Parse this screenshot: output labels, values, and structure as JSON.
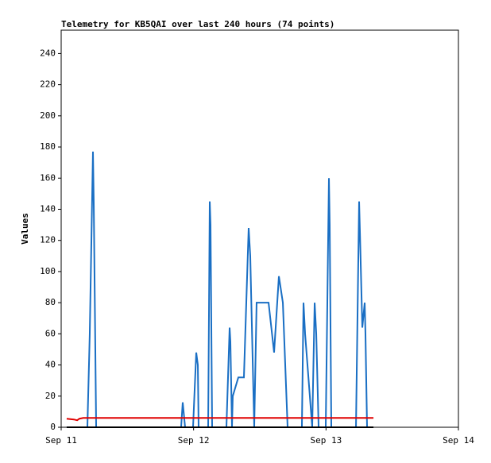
{
  "chart_data": {
    "type": "line",
    "title": "Telemetry for KB5QAI over last 240 hours (74 points)",
    "ylabel": "Values",
    "xlim": [
      0,
      72
    ],
    "xticks": [
      {
        "value": 0,
        "label": "Sep 11"
      },
      {
        "value": 24,
        "label": "Sep 12"
      },
      {
        "value": 48,
        "label": "Sep 13"
      },
      {
        "value": 72,
        "label": "Sep 14"
      }
    ],
    "ylim": [
      0,
      255
    ],
    "yticks": [
      0,
      20,
      40,
      60,
      80,
      100,
      120,
      140,
      160,
      180,
      200,
      220,
      240
    ],
    "series": [
      {
        "color": "#1a6fc4",
        "x": [
          1.0,
          4.75,
          5.18,
          5.76,
          5.9,
          6.34,
          21.74,
          22.03,
          22.46,
          23.9,
          24.48,
          24.77,
          24.91,
          26.64,
          26.93,
          27.07,
          27.36,
          29.95,
          30.53,
          30.67,
          30.96,
          31.1,
          32.11,
          33.12,
          33.98,
          34.27,
          34.99,
          35.42,
          37.59,
          38.59,
          39.46,
          40.18,
          41.04,
          43.63,
          43.92,
          44.21,
          45.07,
          45.5,
          45.94,
          46.23,
          46.66,
          47.95,
          48.53,
          48.67,
          48.96,
          53.43,
          54.0,
          54.15,
          54.58,
          55.01,
          55.15,
          55.44,
          56.59
        ],
        "values": [
          0,
          0,
          60,
          177,
          145,
          0,
          0,
          16,
          0,
          0,
          48,
          40,
          0,
          0,
          145,
          130,
          0,
          0,
          64,
          55,
          0,
          20,
          32,
          32,
          128,
          110,
          0,
          80,
          80,
          48,
          97,
          80,
          0,
          0,
          80,
          60,
          20,
          0,
          80,
          60,
          0,
          0,
          160,
          130,
          0,
          0,
          145,
          125,
          64,
          80,
          60,
          0,
          0
        ]
      },
      {
        "color": "#e00000",
        "x": [
          1.0,
          2.3,
          2.9,
          3.3,
          4.0,
          56.6
        ],
        "values": [
          5.5,
          5,
          4.5,
          5.5,
          6,
          6
        ]
      },
      {
        "color": "#000000",
        "x": [
          1.0,
          56.6
        ],
        "values": [
          0,
          0
        ]
      }
    ]
  }
}
